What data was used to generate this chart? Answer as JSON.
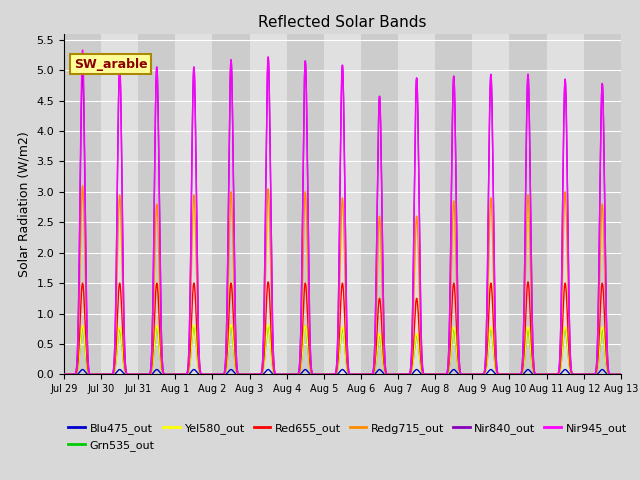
{
  "title": "Reflected Solar Bands",
  "ylabel": "Solar Radiation (W/m2)",
  "bg_color": "#d8d8d8",
  "plot_bg_color": "#d8d8d8",
  "ylim": [
    0,
    5.6
  ],
  "yticks": [
    0.0,
    0.5,
    1.0,
    1.5,
    2.0,
    2.5,
    3.0,
    3.5,
    4.0,
    4.5,
    5.0,
    5.5
  ],
  "annotation_text": "SW_arable",
  "annotation_fg": "#8b0000",
  "annotation_bg": "#ffff99",
  "legend_entries": [
    {
      "label": "Blu475_out",
      "color": "#0000cc"
    },
    {
      "label": "Grn535_out",
      "color": "#00cc00"
    },
    {
      "label": "Yel580_out",
      "color": "#ffff00"
    },
    {
      "label": "Red655_out",
      "color": "#ff0000"
    },
    {
      "label": "Redg715_out",
      "color": "#ff8c00"
    },
    {
      "label": "Nir840_out",
      "color": "#8800bb"
    },
    {
      "label": "Nir945_out",
      "color": "#ff00ff"
    }
  ],
  "line_order": [
    "Blu475_out",
    "Grn535_out",
    "Yel580_out",
    "Red655_out",
    "Redg715_out",
    "Nir840_out",
    "Nir945_out"
  ],
  "line_colors": {
    "Blu475_out": "#0000cc",
    "Grn535_out": "#00cc00",
    "Yel580_out": "#ffff00",
    "Red655_out": "#ff0000",
    "Redg715_out": "#ff8c00",
    "Nir840_out": "#8800bb",
    "Nir945_out": "#ff00ff"
  },
  "day_peaks": {
    "Blu475_out": [
      0.08,
      0.08,
      0.08,
      0.08,
      0.08,
      0.08,
      0.08,
      0.08,
      0.08,
      0.08,
      0.08,
      0.08,
      0.08,
      0.08,
      0.08
    ],
    "Grn535_out": [
      0.78,
      0.75,
      0.78,
      0.8,
      0.8,
      0.8,
      0.8,
      0.75,
      0.65,
      0.65,
      0.75,
      0.75,
      0.75,
      0.75,
      0.75
    ],
    "Yel580_out": [
      0.8,
      0.78,
      0.8,
      0.82,
      0.82,
      0.82,
      0.8,
      0.78,
      0.67,
      0.67,
      0.78,
      0.78,
      0.78,
      0.78,
      0.78
    ],
    "Red655_out": [
      1.5,
      1.5,
      1.5,
      1.5,
      1.5,
      1.52,
      1.5,
      1.5,
      1.25,
      1.25,
      1.5,
      1.5,
      1.52,
      1.5,
      1.5
    ],
    "Redg715_out": [
      3.1,
      2.95,
      2.8,
      2.95,
      3.0,
      3.05,
      3.0,
      2.9,
      2.6,
      2.6,
      2.85,
      2.9,
      2.95,
      3.0,
      2.8
    ],
    "Nir840_out": [
      5.0,
      5.05,
      5.05,
      5.05,
      5.17,
      5.2,
      5.15,
      5.08,
      4.57,
      4.87,
      4.9,
      4.93,
      4.93,
      4.85,
      4.78
    ],
    "Nir945_out": [
      5.33,
      5.05,
      5.05,
      5.05,
      5.17,
      5.22,
      5.15,
      5.08,
      4.57,
      4.87,
      4.9,
      4.93,
      4.93,
      4.85,
      4.78
    ]
  },
  "num_days": 15,
  "xtick_labels": [
    "Jul 29",
    "Jul 30",
    "Jul 31",
    "Aug 1",
    "Aug 2",
    "Aug 3",
    "Aug 4",
    "Aug 5",
    "Aug 6",
    "Aug 7",
    "Aug 8",
    "Aug 9",
    "Aug 10",
    "Aug 11",
    "Aug 12",
    "Aug 13"
  ],
  "stripe_colors": [
    "#cccccc",
    "#e0e0e0"
  ]
}
